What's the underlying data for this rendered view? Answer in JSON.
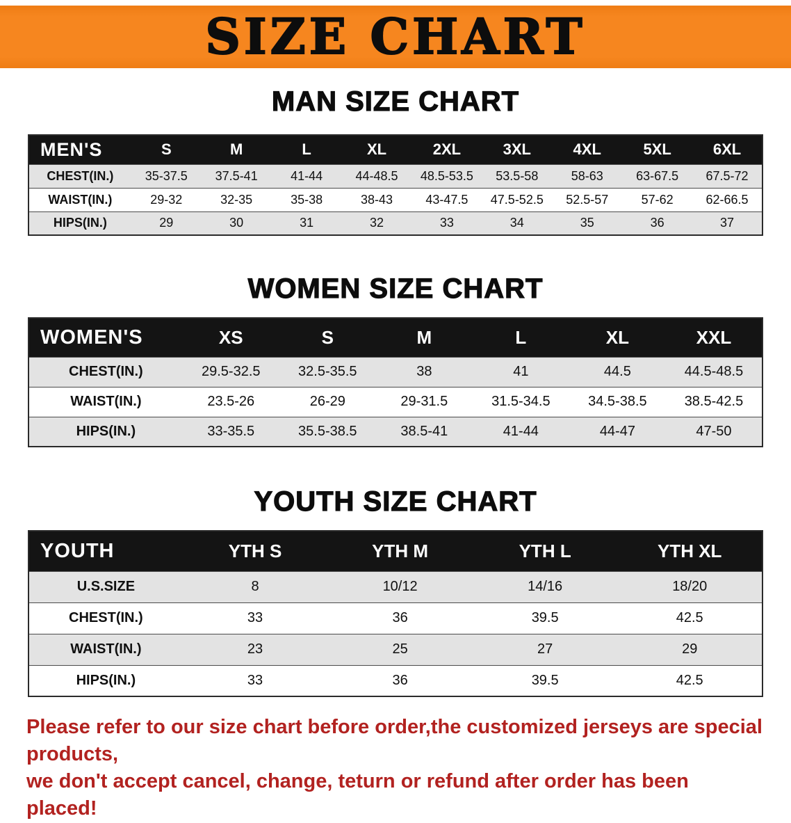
{
  "banner": {
    "title": "SIZE CHART"
  },
  "colors": {
    "banner_bg": "#f6861f",
    "table_header_bg": "#141414",
    "row_alt_bg": "#e3e3e3",
    "footnote_red": "#b22220"
  },
  "chart_data": [
    {
      "type": "table",
      "title": "MAN SIZE CHART",
      "group_label": "MEN'S",
      "columns": [
        "S",
        "M",
        "L",
        "XL",
        "2XL",
        "3XL",
        "4XL",
        "5XL",
        "6XL"
      ],
      "rows": [
        {
          "label": "CHEST(IN.)",
          "values": [
            "35-37.5",
            "37.5-41",
            "41-44",
            "44-48.5",
            "48.5-53.5",
            "53.5-58",
            "58-63",
            "63-67.5",
            "67.5-72"
          ]
        },
        {
          "label": "WAIST(IN.)",
          "values": [
            "29-32",
            "32-35",
            "35-38",
            "38-43",
            "43-47.5",
            "47.5-52.5",
            "52.5-57",
            "57-62",
            "62-66.5"
          ]
        },
        {
          "label": "HIPS(IN.)",
          "values": [
            "29",
            "30",
            "31",
            "32",
            "33",
            "34",
            "35",
            "36",
            "37"
          ]
        }
      ]
    },
    {
      "type": "table",
      "title": "WOMEN SIZE CHART",
      "group_label": "WOMEN'S",
      "columns": [
        "XS",
        "S",
        "M",
        "L",
        "XL",
        "XXL"
      ],
      "rows": [
        {
          "label": "CHEST(IN.)",
          "values": [
            "29.5-32.5",
            "32.5-35.5",
            "38",
            "41",
            "44.5",
            "44.5-48.5"
          ]
        },
        {
          "label": "WAIST(IN.)",
          "values": [
            "23.5-26",
            "26-29",
            "29-31.5",
            "31.5-34.5",
            "34.5-38.5",
            "38.5-42.5"
          ]
        },
        {
          "label": "HIPS(IN.)",
          "values": [
            "33-35.5",
            "35.5-38.5",
            "38.5-41",
            "41-44",
            "44-47",
            "47-50"
          ]
        }
      ]
    },
    {
      "type": "table",
      "title": "YOUTH SIZE CHART",
      "group_label": "YOUTH",
      "columns": [
        "YTH S",
        "YTH M",
        "YTH L",
        "YTH XL"
      ],
      "rows": [
        {
          "label": "U.S.SIZE",
          "values": [
            "8",
            "10/12",
            "14/16",
            "18/20"
          ]
        },
        {
          "label": "CHEST(IN.)",
          "values": [
            "33",
            "36",
            "39.5",
            "42.5"
          ]
        },
        {
          "label": "WAIST(IN.)",
          "values": [
            "23",
            "25",
            "27",
            "29"
          ]
        },
        {
          "label": "HIPS(IN.)",
          "values": [
            "33",
            "36",
            "39.5",
            "42.5"
          ]
        }
      ]
    }
  ],
  "footnote": {
    "lines": [
      "Please refer to our size chart before order,the customized jerseys are special products,",
      "we don't accept cancel, change, teturn or refund after order has been placed!"
    ]
  }
}
